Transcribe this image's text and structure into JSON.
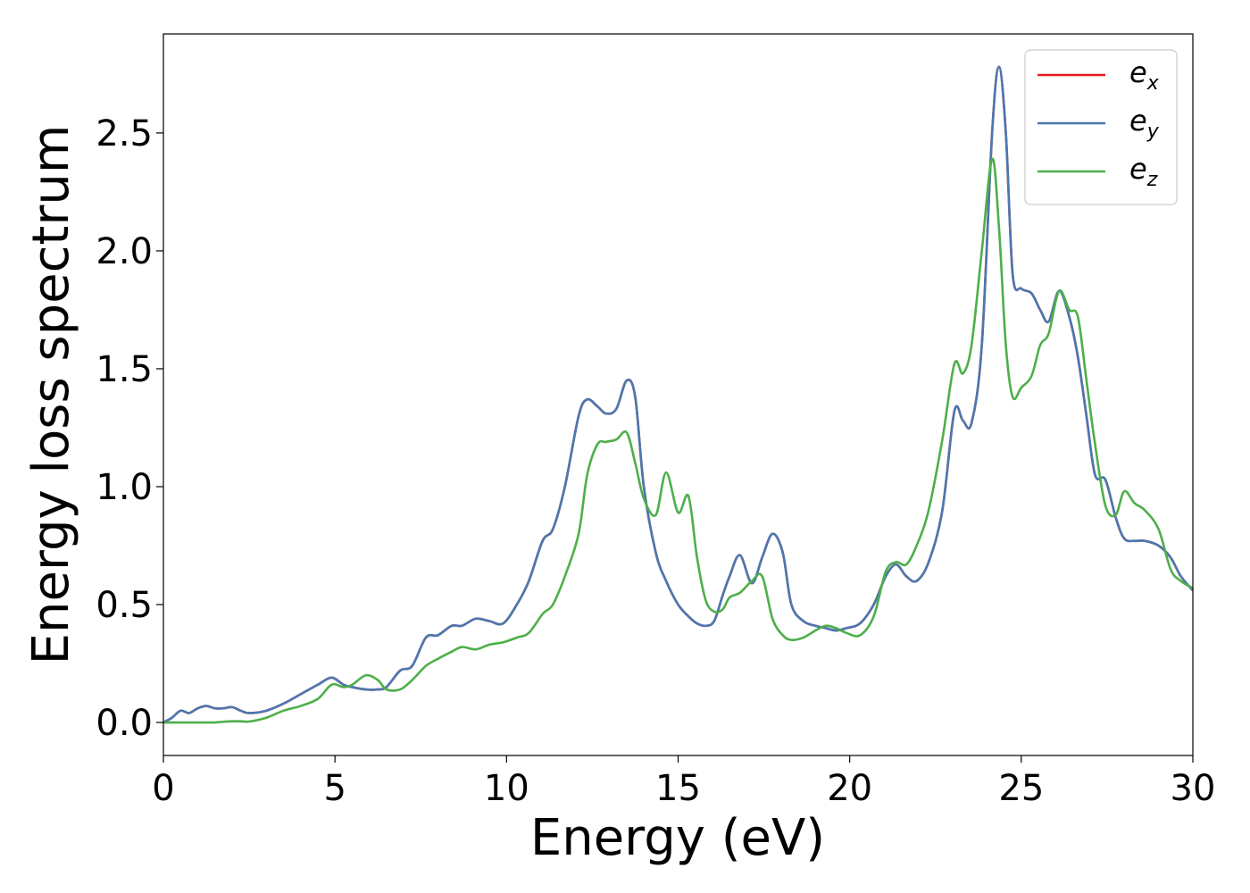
{
  "chart_data": {
    "type": "line",
    "title": "",
    "xlabel": "Energy (eV)",
    "ylabel": "Energy loss spectrum",
    "xlim": [
      0,
      30
    ],
    "ylim": [
      -0.14,
      2.92
    ],
    "xticks": [
      0,
      5,
      10,
      15,
      20,
      25,
      30
    ],
    "xtick_labels": [
      "0",
      "5",
      "10",
      "15",
      "20",
      "25",
      "30"
    ],
    "yticks": [
      0.0,
      0.5,
      1.0,
      1.5,
      2.0,
      2.5
    ],
    "ytick_labels": [
      "0.0",
      "0.5",
      "1.0",
      "1.5",
      "2.0",
      "2.5"
    ],
    "grid": false,
    "legend_position": "top-right",
    "x": [
      0,
      0.25,
      0.5,
      0.75,
      1.0,
      1.25,
      1.5,
      1.75,
      2.0,
      2.25,
      2.5,
      3.0,
      3.5,
      4.0,
      4.5,
      4.9,
      5.25,
      5.5,
      5.9,
      6.25,
      6.5,
      6.9,
      7.25,
      7.65,
      8.0,
      8.4,
      8.7,
      9.1,
      9.5,
      9.9,
      10.3,
      10.65,
      11.05,
      11.35,
      11.7,
      12.1,
      12.35,
      12.65,
      12.9,
      13.2,
      13.5,
      13.75,
      14.0,
      14.35,
      14.65,
      15.0,
      15.3,
      15.55,
      15.8,
      16.05,
      16.3,
      16.5,
      16.8,
      17.15,
      17.45,
      17.75,
      18.05,
      18.3,
      18.65,
      19.0,
      19.3,
      19.6,
      19.9,
      20.3,
      20.7,
      21.05,
      21.35,
      21.65,
      21.95,
      22.3,
      22.7,
      23.05,
      23.3,
      23.55,
      23.85,
      24.15,
      24.35,
      24.55,
      24.75,
      25.0,
      25.3,
      25.55,
      25.8,
      26.1,
      26.4,
      26.65,
      26.9,
      27.15,
      27.45,
      27.75,
      28.0,
      28.3,
      28.6,
      29.0,
      29.35,
      29.65,
      30.0
    ],
    "series": [
      {
        "name": "e_x",
        "label_main": "e",
        "label_sub": "x",
        "color": "#e41a1c",
        "values": [
          0.0,
          0.02,
          0.05,
          0.04,
          0.06,
          0.07,
          0.06,
          0.06,
          0.065,
          0.05,
          0.04,
          0.05,
          0.08,
          0.12,
          0.16,
          0.19,
          0.16,
          0.15,
          0.14,
          0.14,
          0.15,
          0.22,
          0.24,
          0.36,
          0.37,
          0.41,
          0.41,
          0.44,
          0.43,
          0.42,
          0.5,
          0.6,
          0.77,
          0.82,
          1.0,
          1.3,
          1.37,
          1.34,
          1.31,
          1.33,
          1.45,
          1.38,
          1.0,
          0.72,
          0.6,
          0.5,
          0.45,
          0.42,
          0.41,
          0.43,
          0.54,
          0.62,
          0.71,
          0.59,
          0.7,
          0.8,
          0.72,
          0.5,
          0.43,
          0.41,
          0.4,
          0.39,
          0.4,
          0.42,
          0.5,
          0.62,
          0.67,
          0.62,
          0.6,
          0.68,
          0.9,
          1.32,
          1.28,
          1.27,
          1.6,
          2.5,
          2.78,
          2.5,
          1.9,
          1.84,
          1.82,
          1.75,
          1.7,
          1.83,
          1.72,
          1.55,
          1.3,
          1.05,
          1.03,
          0.87,
          0.78,
          0.77,
          0.77,
          0.75,
          0.7,
          0.62,
          0.56
        ]
      },
      {
        "name": "e_y",
        "label_main": "e",
        "label_sub": "y",
        "color": "#4a78b0",
        "values": [
          0.0,
          0.02,
          0.05,
          0.04,
          0.06,
          0.07,
          0.06,
          0.06,
          0.065,
          0.05,
          0.04,
          0.05,
          0.08,
          0.12,
          0.16,
          0.19,
          0.16,
          0.15,
          0.14,
          0.14,
          0.15,
          0.22,
          0.24,
          0.36,
          0.37,
          0.41,
          0.41,
          0.44,
          0.43,
          0.42,
          0.5,
          0.6,
          0.77,
          0.82,
          1.0,
          1.3,
          1.37,
          1.34,
          1.31,
          1.33,
          1.45,
          1.38,
          1.0,
          0.72,
          0.6,
          0.5,
          0.45,
          0.42,
          0.41,
          0.43,
          0.54,
          0.62,
          0.71,
          0.59,
          0.7,
          0.8,
          0.72,
          0.5,
          0.43,
          0.41,
          0.4,
          0.39,
          0.4,
          0.42,
          0.5,
          0.62,
          0.67,
          0.62,
          0.6,
          0.68,
          0.9,
          1.32,
          1.28,
          1.27,
          1.6,
          2.5,
          2.78,
          2.5,
          1.9,
          1.84,
          1.82,
          1.75,
          1.7,
          1.83,
          1.72,
          1.55,
          1.3,
          1.05,
          1.03,
          0.87,
          0.78,
          0.77,
          0.77,
          0.75,
          0.7,
          0.62,
          0.56
        ]
      },
      {
        "name": "e_z",
        "label_main": "e",
        "label_sub": "z",
        "color": "#4daf4a",
        "values": [
          0.0,
          0.0,
          0.0,
          0.0,
          0.0,
          0.0,
          0.0,
          0.003,
          0.005,
          0.005,
          0.004,
          0.02,
          0.05,
          0.07,
          0.1,
          0.16,
          0.15,
          0.16,
          0.2,
          0.18,
          0.14,
          0.14,
          0.18,
          0.24,
          0.27,
          0.3,
          0.32,
          0.31,
          0.33,
          0.34,
          0.36,
          0.38,
          0.46,
          0.5,
          0.62,
          0.8,
          1.05,
          1.18,
          1.19,
          1.2,
          1.23,
          1.1,
          0.95,
          0.88,
          1.06,
          0.89,
          0.96,
          0.7,
          0.52,
          0.47,
          0.48,
          0.53,
          0.55,
          0.6,
          0.62,
          0.44,
          0.37,
          0.35,
          0.36,
          0.39,
          0.41,
          0.4,
          0.38,
          0.37,
          0.45,
          0.64,
          0.68,
          0.67,
          0.75,
          0.9,
          1.2,
          1.52,
          1.48,
          1.6,
          2.0,
          2.39,
          2.1,
          1.6,
          1.38,
          1.42,
          1.47,
          1.6,
          1.65,
          1.83,
          1.75,
          1.72,
          1.45,
          1.18,
          0.92,
          0.88,
          0.98,
          0.93,
          0.9,
          0.82,
          0.65,
          0.6,
          0.57
        ]
      }
    ]
  }
}
